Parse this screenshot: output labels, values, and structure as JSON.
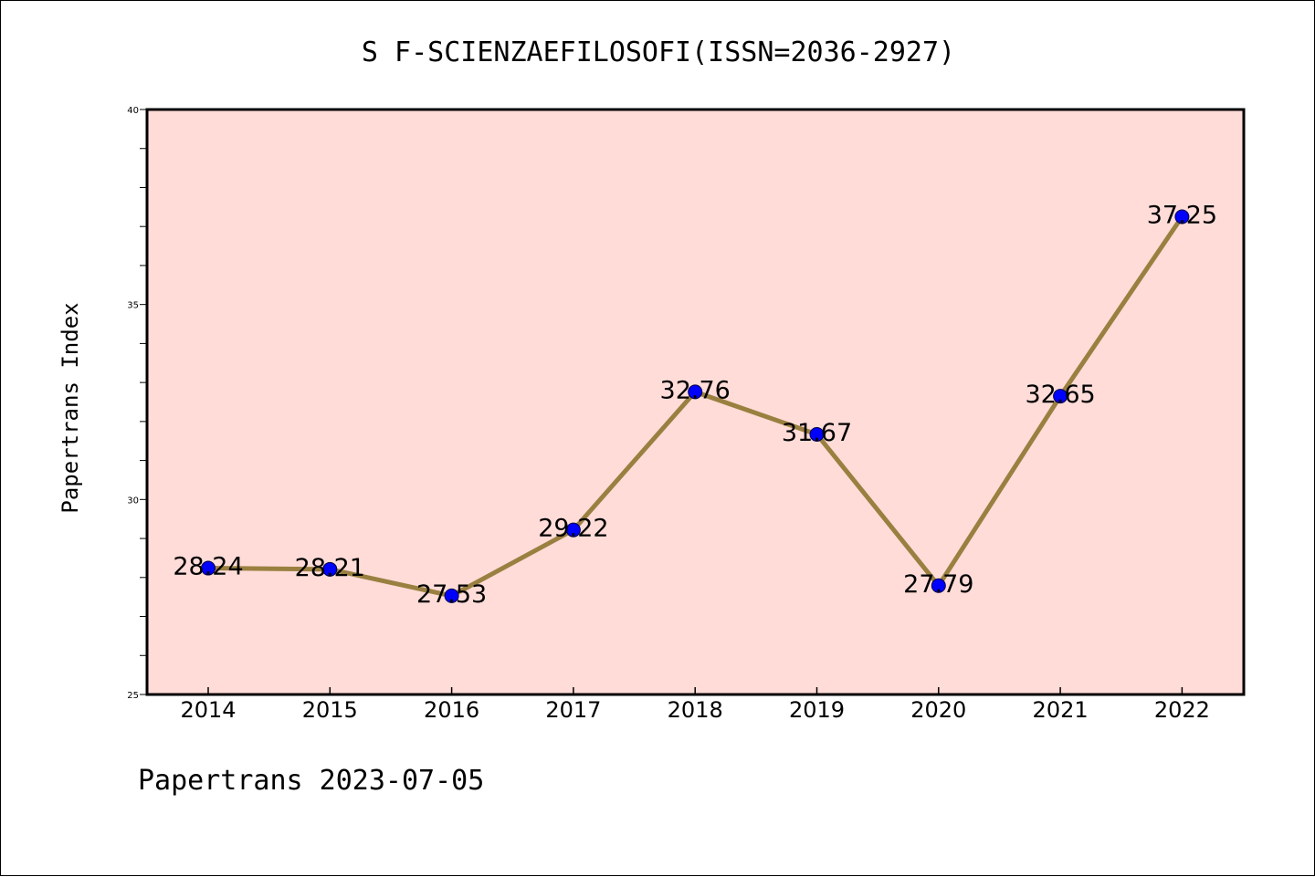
{
  "chart_data": {
    "type": "line",
    "title": "S F-SCIENZAEFILOSOFI(ISSN=2036-2927)",
    "xlabel": "",
    "ylabel": "Papertrans Index",
    "footer": "Papertrans 2023-07-05",
    "categories": [
      "2014",
      "2015",
      "2016",
      "2017",
      "2018",
      "2019",
      "2020",
      "2021",
      "2022"
    ],
    "values": [
      28.24,
      28.21,
      27.53,
      29.22,
      32.76,
      31.67,
      27.79,
      32.65,
      37.25
    ],
    "value_labels": [
      "28.24",
      "28.21",
      "27.53",
      "29.22",
      "32.76",
      "31.67",
      "27.79",
      "32.65",
      "37.25"
    ],
    "ylim": [
      25,
      40
    ],
    "yticks": [
      "25",
      "30",
      "35",
      "40"
    ],
    "y_minor_step": 1,
    "grid": false,
    "colors": {
      "plot_background": "#FFDCD8",
      "line": "#9A8040",
      "marker": "#0000FF",
      "axis": "#000000"
    }
  }
}
